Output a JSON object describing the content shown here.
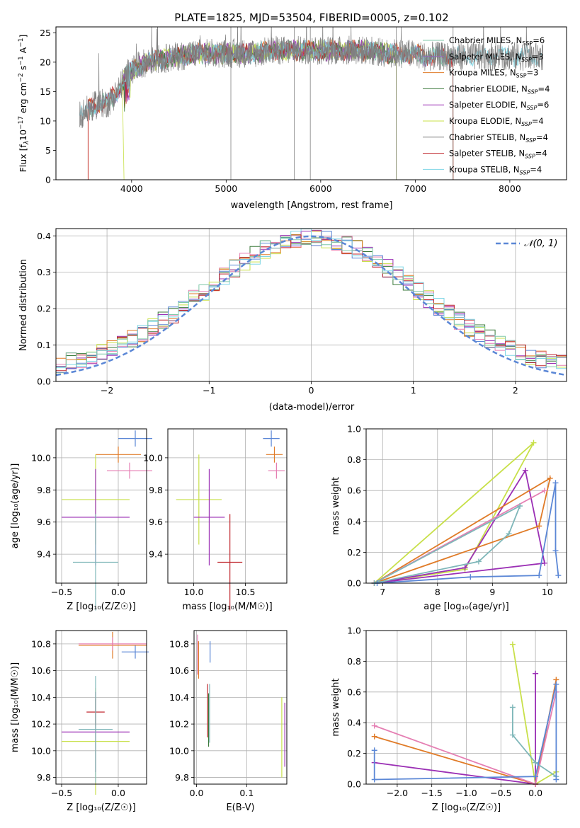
{
  "colors": {
    "chabrier_miles": "#7fc8a9",
    "salpeter_miles": "#9467bd",
    "kroupa_miles": "#e07b28",
    "chabrier_elodie": "#3b7a3b",
    "salpeter_elodie": "#9b30b5",
    "kroupa_elodie": "#c8e04a",
    "chabrier_stelib": "#808080",
    "salpeter_stelib": "#c0262d",
    "kroupa_stelib": "#7fd6e6",
    "normal": "#5b87d6",
    "pink": "#e57fb3",
    "blue": "#5b87d6",
    "teal": "#7fb7b9"
  },
  "chart_data": [
    {
      "id": "spectrum",
      "type": "line",
      "title": "PLATE=1825, MJD=53504, FIBERID=0005, z=0.102",
      "xlabel": "wavelength [Angstrom, rest frame]",
      "ylabel_parts": [
        "Flux [f",
        "λ",
        "10",
        "−17",
        " erg cm",
        "−2",
        " s",
        "−1",
        " A",
        "−1",
        "]"
      ],
      "xlim": [
        3200,
        8600
      ],
      "ylim": [
        0,
        26
      ],
      "xticks": [
        4000,
        5000,
        6000,
        7000,
        8000
      ],
      "yticks": [
        0,
        5,
        10,
        15,
        20,
        25
      ],
      "legend_position": "right",
      "series": [
        {
          "name": "Chabrier MILES, N_SSP=6",
          "label": "Chabrier MILES, N",
          "sub": "SSP",
          "suffix": "=6"
        },
        {
          "name": "Salpeter MILES, N_SSP=3",
          "label": "Salpeter MILES, N",
          "sub": "SSP",
          "suffix": "=3"
        },
        {
          "name": "Kroupa MILES, N_SSP=3",
          "label": "Kroupa MILES, N",
          "sub": "SSP",
          "suffix": "=3"
        },
        {
          "name": "Chabrier ELODIE, N_SSP=4",
          "label": "Chabrier ELODIE, N",
          "sub": "SSP",
          "suffix": "=4"
        },
        {
          "name": "Salpeter ELODIE, N_SSP=6",
          "label": "Salpeter ELODIE, N",
          "sub": "SSP",
          "suffix": "=6"
        },
        {
          "name": "Kroupa ELODIE, N_SSP=4",
          "label": "Kroupa ELODIE, N",
          "sub": "SSP",
          "suffix": "=4"
        },
        {
          "name": "Chabrier STELIB, N_SSP=4",
          "label": "Chabrier STELIB, N",
          "sub": "SSP",
          "suffix": "=4"
        },
        {
          "name": "Salpeter STELIB, N_SSP=4",
          "label": "Salpeter STELIB, N",
          "sub": "SSP",
          "suffix": "=4"
        },
        {
          "name": "Kroupa STELIB, N_SSP=4",
          "label": "Kroupa STELIB, N",
          "sub": "SSP",
          "suffix": "=4"
        }
      ],
      "continuum": {
        "x": [
          3450,
          3550,
          3650,
          3750,
          3850,
          3950,
          4050,
          4150,
          4300,
          4500,
          4700,
          4900,
          5100,
          5300,
          5500,
          5700,
          5900,
          6100,
          6300,
          6500,
          6700,
          6900,
          7100,
          7300,
          7400
        ],
        "y": [
          11,
          12,
          13,
          13,
          15,
          18,
          19,
          20,
          20.5,
          21,
          21.5,
          21.5,
          21.5,
          21.5,
          22,
          22,
          22,
          22,
          22,
          22,
          21.5,
          21.5,
          21,
          21,
          21
        ]
      }
    },
    {
      "id": "residuals",
      "type": "histogram",
      "xlabel": "(data-model)/error",
      "ylabel": "Normed distribution",
      "xlim": [
        -2.5,
        2.5
      ],
      "ylim": [
        0,
        0.42
      ],
      "xticks": [
        -2,
        -1,
        0,
        1,
        2
      ],
      "yticks": [
        0.0,
        0.1,
        0.2,
        0.3,
        0.4
      ],
      "legend": "𝒩(0, 1)",
      "legend_position": "top-right",
      "grid": true
    },
    {
      "id": "age-vs-Z",
      "type": "scatter",
      "xlabel": "Z [log₁₀(Z/Z☉)]",
      "ylabel": "age  [log₁₀(age/yr)]",
      "xlim": [
        -0.55,
        0.25
      ],
      "ylim": [
        9.22,
        10.18
      ],
      "xticks": [
        -0.5,
        0.0
      ],
      "yticks": [
        9.4,
        9.6,
        9.8,
        10.0
      ],
      "points": [
        {
          "x": 0.15,
          "y": 10.12,
          "xerr": 0.15,
          "yerr": 0.05,
          "color": "blue"
        },
        {
          "x": 0.0,
          "y": 10.02,
          "xerr": 0.2,
          "yerr": 0.05,
          "color": "kroupa_miles"
        },
        {
          "x": 0.1,
          "y": 9.92,
          "xerr": 0.2,
          "yerr": 0.05,
          "color": "pink"
        },
        {
          "x": -0.2,
          "y": 9.74,
          "xerr": 0.3,
          "yerr": 0.28,
          "color": "kroupa_elodie"
        },
        {
          "x": -0.2,
          "y": 9.63,
          "xerr": 0.3,
          "yerr": 0.3,
          "color": "salpeter_elodie"
        },
        {
          "x": -0.2,
          "y": 9.35,
          "xerr": 0.2,
          "yerr": 0.3,
          "color": "teal"
        }
      ]
    },
    {
      "id": "age-vs-mass",
      "type": "scatter",
      "xlabel": "mass [log₁₀(M/M☉)]",
      "ylabel": "",
      "xlim": [
        9.75,
        10.9
      ],
      "ylim": [
        9.22,
        10.18
      ],
      "xticks": [
        10.0,
        10.5
      ],
      "yticks": [
        9.4,
        9.6,
        9.8,
        10.0
      ],
      "points": [
        {
          "x": 10.75,
          "y": 10.12,
          "xerr": 0.08,
          "yerr": 0.05,
          "color": "blue"
        },
        {
          "x": 10.78,
          "y": 10.02,
          "xerr": 0.08,
          "yerr": 0.05,
          "color": "kroupa_miles"
        },
        {
          "x": 10.8,
          "y": 9.92,
          "xerr": 0.08,
          "yerr": 0.05,
          "color": "pink"
        },
        {
          "x": 10.05,
          "y": 9.74,
          "xerr": 0.22,
          "yerr": 0.28,
          "color": "kroupa_elodie"
        },
        {
          "x": 10.15,
          "y": 9.63,
          "xerr": 0.15,
          "yerr": 0.3,
          "color": "salpeter_elodie"
        },
        {
          "x": 10.35,
          "y": 9.35,
          "xerr": 0.12,
          "yerr": 0.3,
          "color": "salpeter_stelib"
        }
      ]
    },
    {
      "id": "massweight-vs-age",
      "type": "line",
      "xlabel": "age  [log₁₀(age/yr)]",
      "ylabel": "mass weight",
      "xlim": [
        6.7,
        10.35
      ],
      "ylim": [
        0,
        1.0
      ],
      "xticks": [
        7,
        8,
        9,
        10
      ],
      "yticks": [
        0.0,
        0.2,
        0.4,
        0.6,
        0.8,
        1.0
      ],
      "grid": true,
      "series": [
        {
          "color": "kroupa_elodie",
          "x": [
            6.85,
            8.5,
            9.75,
            6.85
          ],
          "y": [
            0.0,
            0.09,
            0.91,
            0.0
          ]
        },
        {
          "color": "salpeter_elodie",
          "x": [
            6.85,
            8.5,
            9.6,
            9.95,
            6.85
          ],
          "y": [
            0.0,
            0.1,
            0.73,
            0.13,
            0.0
          ]
        },
        {
          "color": "kroupa_miles",
          "x": [
            6.85,
            9.85,
            10.05,
            6.85
          ],
          "y": [
            0.0,
            0.37,
            0.68,
            0.0
          ]
        },
        {
          "color": "pink",
          "x": [
            6.85,
            9.95,
            6.85
          ],
          "y": [
            0.0,
            0.6,
            0.0
          ]
        },
        {
          "color": "teal",
          "x": [
            6.85,
            8.75,
            9.3,
            9.5,
            6.85
          ],
          "y": [
            0.0,
            0.14,
            0.32,
            0.5,
            0.0
          ]
        },
        {
          "color": "blue",
          "x": [
            6.9,
            8.6,
            9.85,
            10.15,
            10.15,
            10.2
          ],
          "y": [
            0.0,
            0.04,
            0.05,
            0.65,
            0.21,
            0.05
          ]
        }
      ]
    },
    {
      "id": "mass-vs-Z",
      "type": "scatter",
      "xlabel": "Z [log₁₀(Z/Z☉)]",
      "ylabel": "mass [log₁₀(M/M☉)]",
      "xlim": [
        -0.55,
        0.25
      ],
      "ylim": [
        9.75,
        10.9
      ],
      "xticks": [
        -0.5,
        0.0
      ],
      "yticks": [
        9.8,
        10.0,
        10.2,
        10.4,
        10.6,
        10.8
      ],
      "points": [
        {
          "x": 0.15,
          "y": 10.74,
          "xerr": 0.12,
          "yerr": 0.05,
          "color": "blue"
        },
        {
          "x": -0.05,
          "y": 10.79,
          "xerr": 0.3,
          "yerr": 0.1,
          "color": "kroupa_miles"
        },
        {
          "x": -0.05,
          "y": 10.8,
          "xerr": 0.3,
          "yerr": 0.05,
          "color": "pink"
        },
        {
          "x": -0.2,
          "y": 10.29,
          "xerr": 0.08,
          "yerr": 0.1,
          "color": "salpeter_stelib"
        },
        {
          "x": -0.2,
          "y": 10.07,
          "xerr": 0.3,
          "yerr": 0.4,
          "color": "kroupa_elodie"
        },
        {
          "x": -0.2,
          "y": 10.14,
          "xerr": 0.3,
          "yerr": 0.3,
          "color": "salpeter_elodie"
        },
        {
          "x": -0.2,
          "y": 10.16,
          "xerr": 0.15,
          "yerr": 0.4,
          "color": "teal"
        }
      ]
    },
    {
      "id": "mass-vs-ebv",
      "type": "scatter",
      "xlabel": "E(B-V)",
      "ylabel": "",
      "xlim": [
        -0.005,
        0.18
      ],
      "ylim": [
        9.75,
        10.9
      ],
      "xticks": [
        0.0,
        0.1
      ],
      "yticks": [
        9.8,
        10.0,
        10.2,
        10.4,
        10.6,
        10.8
      ],
      "points": [
        {
          "x": 0.027,
          "y": 10.74,
          "yerr": 0.08,
          "color": "blue"
        },
        {
          "x": 0.002,
          "y": 10.72,
          "yerr": 0.15,
          "color": "pink"
        },
        {
          "x": 0.004,
          "y": 10.68,
          "yerr": 0.14,
          "color": "kroupa_miles"
        },
        {
          "x": 0.022,
          "y": 10.3,
          "yerr": 0.2,
          "color": "salpeter_stelib"
        },
        {
          "x": 0.024,
          "y": 10.23,
          "yerr": 0.2,
          "color": "chabrier_elodie"
        },
        {
          "x": 0.026,
          "y": 10.28,
          "yerr": 0.22,
          "color": "teal"
        },
        {
          "x": 0.17,
          "y": 10.1,
          "yerr": 0.3,
          "color": "kroupa_elodie"
        },
        {
          "x": 0.176,
          "y": 10.12,
          "yerr": 0.24,
          "color": "salpeter_elodie"
        }
      ]
    },
    {
      "id": "massweight-vs-Z",
      "type": "line",
      "xlabel": "Z [log₁₀(Z/Z☉)]",
      "ylabel": "mass weight",
      "xlim": [
        -2.45,
        0.45
      ],
      "ylim": [
        0,
        1.0
      ],
      "xticks": [
        -2.0,
        -1.5,
        -1.0,
        -0.5,
        0.0
      ],
      "yticks": [
        0.0,
        0.2,
        0.4,
        0.6,
        0.8,
        1.0
      ],
      "grid": true,
      "series": [
        {
          "color": "kroupa_elodie",
          "x": [
            -0.33,
            0.0,
            0.3
          ],
          "y": [
            0.91,
            0.0,
            0.08
          ]
        },
        {
          "color": "salpeter_elodie",
          "x": [
            -2.33,
            0.0,
            0.0
          ],
          "y": [
            0.14,
            0.0,
            0.72
          ]
        },
        {
          "color": "kroupa_miles",
          "x": [
            -2.33,
            0.0,
            0.3
          ],
          "y": [
            0.31,
            0.0,
            0.68
          ]
        },
        {
          "color": "pink",
          "x": [
            -2.33,
            0.0,
            0.3
          ],
          "y": [
            0.38,
            0.0,
            0.6
          ]
        },
        {
          "color": "teal",
          "x": [
            -0.33,
            -0.33,
            0.0,
            0.3
          ],
          "y": [
            0.5,
            0.32,
            0.14,
            0.05
          ]
        },
        {
          "color": "blue",
          "x": [
            -2.33,
            -2.33,
            0.0,
            0.3,
            0.3
          ],
          "y": [
            0.22,
            0.03,
            0.05,
            0.65,
            0.03
          ]
        }
      ]
    }
  ]
}
